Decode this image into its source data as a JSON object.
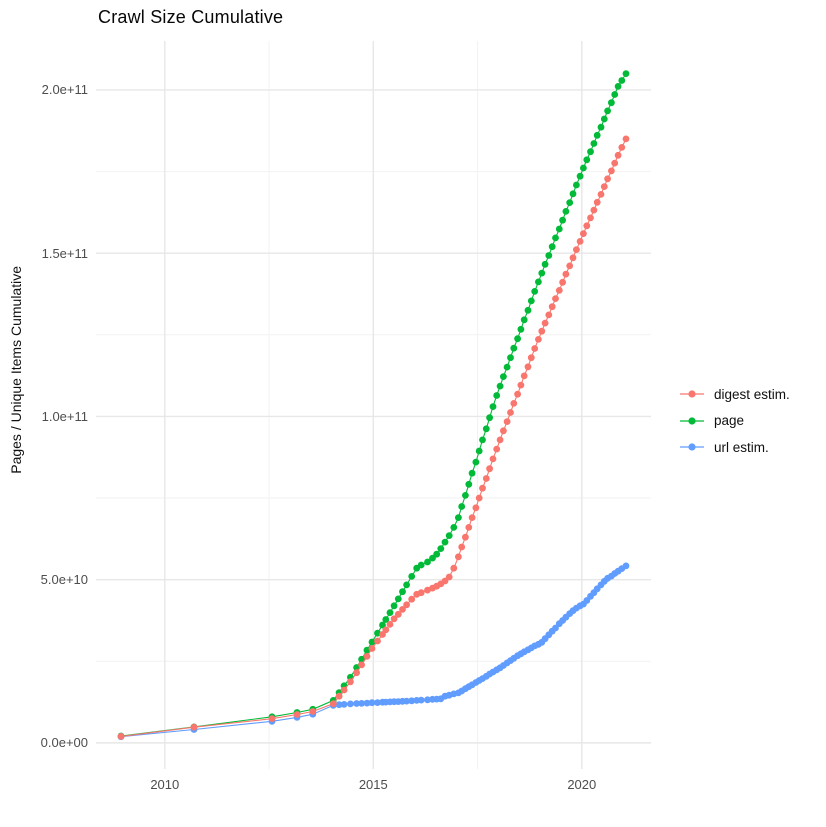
{
  "title": "Crawl Size Cumulative",
  "y_axis": {
    "label": "Pages / Unique Items Cumulative",
    "ticks": [
      {
        "value": 0,
        "label": "0.0e+00"
      },
      {
        "value": 50,
        "label": "5.0e+10"
      },
      {
        "value": 100,
        "label": "1.0e+11"
      },
      {
        "value": 150,
        "label": "1.5e+11"
      },
      {
        "value": 200,
        "label": "2.0e+11"
      }
    ],
    "minor_ticks": [
      25,
      75,
      125,
      175
    ]
  },
  "x_axis": {
    "ticks": [
      {
        "value": 2010,
        "label": "2010"
      },
      {
        "value": 2015,
        "label": "2015"
      },
      {
        "value": 2020,
        "label": "2020"
      }
    ],
    "minor_ticks": [
      2012.5,
      2017.5
    ]
  },
  "legend": {
    "items": [
      {
        "label": "digest estim.",
        "color": "#F8766D"
      },
      {
        "label": "page",
        "color": "#00BA38"
      },
      {
        "label": "url estim.",
        "color": "#619CFF"
      }
    ]
  },
  "style_colors": {
    "major_grid": "#e7e7e7",
    "minor_grid": "#f2f2f2",
    "axis_text": "#4d4d4d"
  },
  "chart_data": {
    "type": "line",
    "title": "Crawl Size Cumulative",
    "xlabel": "",
    "ylabel": "Pages / Unique Items Cumulative",
    "unit": "billions (1e9) of pages / unique items",
    "xlim": [
      2008.35,
      2021.66
    ],
    "ylim_billions": [
      -8,
      215
    ],
    "grid": true,
    "legend_position": "right",
    "x": [
      2008.95,
      2010.7,
      2012.57,
      2013.17,
      2013.55,
      2014.04,
      2014.18,
      2014.3,
      2014.45,
      2014.6,
      2014.72,
      2014.85,
      2014.97,
      2015.1,
      2015.22,
      2015.3,
      2015.4,
      2015.5,
      2015.6,
      2015.7,
      2015.8,
      2015.92,
      2016.04,
      2016.15,
      2016.3,
      2016.42,
      2016.52,
      2016.62,
      2016.72,
      2016.82,
      2016.93,
      2017.04,
      2017.12,
      2017.21,
      2017.29,
      2017.37,
      2017.46,
      2017.54,
      2017.62,
      2017.71,
      2017.79,
      2017.87,
      2017.96,
      2018.04,
      2018.12,
      2018.21,
      2018.29,
      2018.37,
      2018.46,
      2018.54,
      2018.62,
      2018.71,
      2018.79,
      2018.87,
      2018.96,
      2019.04,
      2019.12,
      2019.21,
      2019.29,
      2019.37,
      2019.46,
      2019.54,
      2019.62,
      2019.71,
      2019.79,
      2019.87,
      2019.96,
      2020.04,
      2020.12,
      2020.21,
      2020.29,
      2020.37,
      2020.46,
      2020.54,
      2020.62,
      2020.71,
      2020.79,
      2020.87,
      2020.96,
      2021.06
    ],
    "series": [
      {
        "name": "digest estim.",
        "color": "#F8766D",
        "values": [
          2.0,
          4.8,
          7.4,
          8.7,
          9.6,
          12.0,
          14.3,
          16.2,
          18.7,
          21.5,
          23.9,
          26.5,
          28.9,
          31.2,
          33.2,
          34.6,
          36.3,
          38.0,
          39.4,
          40.9,
          42.3,
          44.0,
          45.5,
          46.0,
          46.8,
          47.4,
          48.0,
          48.7,
          49.6,
          50.8,
          53.5,
          57.0,
          60.0,
          63.0,
          66.0,
          69.0,
          72.0,
          75.0,
          78.0,
          81.0,
          84.0,
          87.0,
          90.0,
          92.8,
          95.6,
          98.4,
          101.2,
          104.0,
          106.8,
          109.6,
          112.4,
          115.2,
          118.0,
          120.8,
          123.6,
          126.1,
          128.6,
          131.1,
          133.6,
          136.1,
          138.6,
          141.1,
          143.6,
          146.1,
          148.6,
          151.1,
          153.6,
          156.0,
          158.4,
          160.8,
          163.2,
          165.6,
          168.0,
          170.4,
          172.8,
          175.2,
          177.6,
          180.0,
          182.4,
          185.0
        ]
      },
      {
        "name": "page",
        "color": "#00BA38",
        "values": [
          2.1,
          4.9,
          8.0,
          9.3,
          10.3,
          13.0,
          15.4,
          17.5,
          20.1,
          23.1,
          25.6,
          28.4,
          30.9,
          33.6,
          36.1,
          37.8,
          39.9,
          42.0,
          44.1,
          46.3,
          48.4,
          51.0,
          53.5,
          54.5,
          55.4,
          56.6,
          57.8,
          59.5,
          61.5,
          63.5,
          66.0,
          69.0,
          72.4,
          75.8,
          79.2,
          82.6,
          86.0,
          89.4,
          92.8,
          96.2,
          99.6,
          103.0,
          106.4,
          109.3,
          112.2,
          115.1,
          118.0,
          120.9,
          123.8,
          126.7,
          129.6,
          132.5,
          135.4,
          138.3,
          141.2,
          143.9,
          146.6,
          149.3,
          152.0,
          154.7,
          157.4,
          160.1,
          162.8,
          165.5,
          168.2,
          170.9,
          173.6,
          176.1,
          178.6,
          181.1,
          183.6,
          186.1,
          188.6,
          191.1,
          193.6,
          196.1,
          198.6,
          201.1,
          202.9,
          205.0
        ]
      },
      {
        "name": "url estim.",
        "color": "#619CFF",
        "values": [
          1.9,
          4.1,
          6.6,
          7.8,
          8.8,
          11.5,
          11.7,
          11.8,
          11.95,
          12.05,
          12.1,
          12.2,
          12.3,
          12.35,
          12.45,
          12.5,
          12.55,
          12.6,
          12.65,
          12.75,
          12.8,
          12.9,
          13.0,
          13.1,
          13.2,
          13.35,
          13.4,
          13.5,
          14.3,
          14.6,
          15.0,
          15.3,
          15.9,
          16.6,
          17.2,
          17.8,
          18.5,
          19.1,
          19.7,
          20.4,
          21.1,
          21.7,
          22.4,
          23.0,
          23.7,
          24.5,
          25.2,
          25.9,
          26.7,
          27.3,
          27.9,
          28.5,
          29.1,
          29.7,
          30.2,
          30.8,
          31.9,
          33.1,
          34.2,
          35.2,
          36.5,
          37.5,
          38.5,
          39.6,
          40.5,
          41.3,
          42.0,
          42.5,
          43.6,
          44.9,
          46.0,
          47.2,
          48.4,
          49.5,
          50.4,
          51.1,
          51.9,
          52.6,
          53.4,
          54.2
        ]
      }
    ]
  }
}
